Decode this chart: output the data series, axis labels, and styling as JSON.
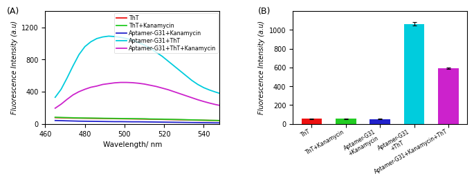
{
  "panel_A": {
    "xlabel": "Wavelength/ nm",
    "ylabel": "Fluorescence Intensity (a.u)",
    "xlim": [
      460,
      548
    ],
    "ylim": [
      0,
      1400
    ],
    "yticks": [
      0,
      400,
      800,
      1200
    ],
    "xticks": [
      460,
      480,
      500,
      520,
      540
    ],
    "lines": {
      "ThT": {
        "color": "#EE1111",
        "x": [
          465,
          468,
          471,
          474,
          477,
          480,
          483,
          486,
          489,
          492,
          495,
          498,
          501,
          504,
          507,
          510,
          513,
          516,
          519,
          522,
          525,
          528,
          531,
          534,
          537,
          540,
          543,
          546,
          548
        ],
        "y": [
          78,
          76,
          74,
          72,
          71,
          70,
          69,
          68,
          67,
          66,
          65,
          64,
          63,
          62,
          61,
          60,
          58,
          57,
          56,
          54,
          53,
          51,
          50,
          48,
          46,
          45,
          43,
          42,
          41
        ]
      },
      "ThT+Kanamycin": {
        "color": "#22CC22",
        "x": [
          465,
          468,
          471,
          474,
          477,
          480,
          483,
          486,
          489,
          492,
          495,
          498,
          501,
          504,
          507,
          510,
          513,
          516,
          519,
          522,
          525,
          528,
          531,
          534,
          537,
          540,
          543,
          546,
          548
        ],
        "y": [
          82,
          80,
          78,
          76,
          74,
          73,
          72,
          71,
          70,
          69,
          68,
          67,
          66,
          65,
          64,
          63,
          61,
          60,
          59,
          57,
          55,
          54,
          52,
          50,
          48,
          46,
          44,
          43,
          42
        ]
      },
      "Aptamer-G31+Kanamycin": {
        "color": "#2222CC",
        "x": [
          465,
          468,
          471,
          474,
          477,
          480,
          483,
          486,
          489,
          492,
          495,
          498,
          501,
          504,
          507,
          510,
          513,
          516,
          519,
          522,
          525,
          528,
          531,
          534,
          537,
          540,
          543,
          546,
          548
        ],
        "y": [
          42,
          40,
          38,
          36,
          34,
          33,
          32,
          31,
          30,
          29,
          28,
          28,
          27,
          26,
          26,
          25,
          24,
          23,
          22,
          21,
          20,
          19,
          18,
          17,
          16,
          15,
          14,
          13,
          13
        ]
      },
      "Aptamer-G31+ThT": {
        "color": "#00CCDD",
        "x": [
          465,
          468,
          471,
          474,
          477,
          480,
          483,
          486,
          489,
          492,
          495,
          498,
          501,
          504,
          507,
          510,
          513,
          516,
          519,
          522,
          525,
          528,
          531,
          534,
          537,
          540,
          543,
          546,
          548
        ],
        "y": [
          330,
          430,
          570,
          720,
          860,
          960,
          1020,
          1060,
          1080,
          1090,
          1085,
          1075,
          1060,
          1040,
          1010,
          980,
          940,
          890,
          840,
          780,
          720,
          660,
          600,
          540,
          490,
          450,
          420,
          395,
          380
        ]
      },
      "Aptamer-G31+ThT+Kanamycin": {
        "color": "#CC22CC",
        "x": [
          465,
          468,
          471,
          474,
          477,
          480,
          483,
          486,
          489,
          492,
          495,
          498,
          501,
          504,
          507,
          510,
          513,
          516,
          519,
          522,
          525,
          528,
          531,
          534,
          537,
          540,
          543,
          546,
          548
        ],
        "y": [
          195,
          245,
          305,
          360,
          400,
          430,
          455,
          470,
          490,
          500,
          510,
          515,
          515,
          512,
          505,
          495,
          480,
          465,
          445,
          425,
          400,
          375,
          350,
          325,
          300,
          278,
          258,
          240,
          230
        ]
      }
    },
    "legend_order": [
      "ThT",
      "ThT+Kanamycin",
      "Aptamer-G31+Kanamycin",
      "Aptamer-G31+ThT",
      "Aptamer-G31+ThT+Kanamycin"
    ]
  },
  "panel_B": {
    "ylabel": "Fluorescence Intensity (a.u)",
    "ylim": [
      0,
      1200
    ],
    "yticks": [
      0,
      200,
      400,
      600,
      800,
      1000
    ],
    "values": [
      55,
      55,
      50,
      1065,
      595
    ],
    "errors": [
      4,
      5,
      4,
      18,
      8
    ],
    "colors": [
      "#EE1111",
      "#22CC22",
      "#2222CC",
      "#00CCDD",
      "#CC22CC"
    ],
    "bar_labels": [
      "ThT",
      "ThT+Kanamycin",
      "Aptamer-G31\n+Kanamycin",
      "Aptamer-G31\n+ThT",
      "Aptamer-G31+Kanamycin+ThT"
    ]
  }
}
